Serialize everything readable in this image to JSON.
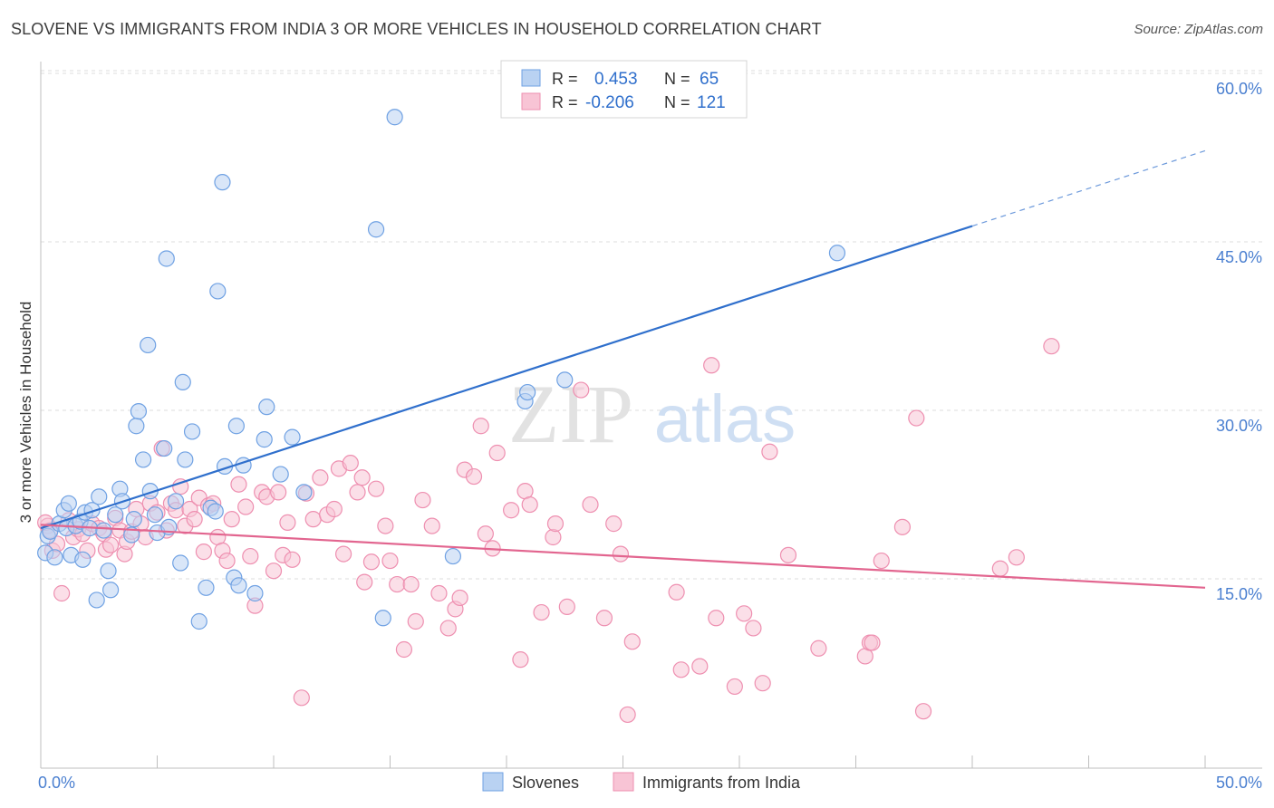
{
  "title": "SLOVENE VS IMMIGRANTS FROM INDIA 3 OR MORE VEHICLES IN HOUSEHOLD CORRELATION CHART",
  "source": "Source: ZipAtlas.com",
  "watermark": {
    "zip": "ZIP",
    "atlas": "atlas"
  },
  "legend_top": {
    "rows": [
      {
        "r_label": "R =",
        "r_value": "0.453",
        "n_label": "N =",
        "n_value": "65",
        "color": "#6fa1e3"
      },
      {
        "r_label": "R =",
        "r_value": "-0.206",
        "n_label": "N =",
        "n_value": "121",
        "color": "#f090b0"
      }
    ]
  },
  "legend_bottom": [
    {
      "label": "Slovenes",
      "color": "#6fa1e3"
    },
    {
      "label": "Immigrants from India",
      "color": "#f090b0"
    }
  ],
  "colors": {
    "blue_fill": "#b9d2f2",
    "blue_stroke": "#6fa1e3",
    "blue_line": "#2f6fcc",
    "pink_fill": "#f8c4d5",
    "pink_stroke": "#ee8fb0",
    "pink_line": "#e2658f",
    "tick_label": "#4a7fd0",
    "grid": "#dedede",
    "axis": "#bfbfbf"
  },
  "chart_data": {
    "type": "scatter",
    "ylabel": "3 or more Vehicles in Household",
    "xlim": [
      0,
      50
    ],
    "ylim": [
      0,
      60
    ],
    "x_tick_labels": [
      {
        "value": 0,
        "label": "0.0%"
      },
      {
        "value": 50,
        "label": "50.0%"
      }
    ],
    "y_tick_labels": [
      {
        "value": 15,
        "label": "15.0%"
      },
      {
        "value": 30,
        "label": "30.0%"
      },
      {
        "value": 45,
        "label": "45.0%"
      },
      {
        "value": 60,
        "label": "60.0%"
      }
    ],
    "grid": true,
    "series": [
      {
        "name": "Slovenes",
        "points": [
          [
            0.2,
            18.6
          ],
          [
            0.3,
            20.1
          ],
          [
            0.4,
            20.5
          ],
          [
            0.6,
            18.2
          ],
          [
            0.8,
            21.2
          ],
          [
            1.0,
            22.4
          ],
          [
            1.1,
            20.8
          ],
          [
            1.2,
            23.0
          ],
          [
            1.3,
            18.4
          ],
          [
            1.5,
            21.0
          ],
          [
            1.7,
            21.4
          ],
          [
            1.8,
            18.0
          ],
          [
            1.9,
            22.2
          ],
          [
            2.1,
            20.8
          ],
          [
            2.2,
            22.4
          ],
          [
            2.4,
            14.4
          ],
          [
            2.5,
            23.6
          ],
          [
            2.7,
            20.6
          ],
          [
            2.9,
            17.0
          ],
          [
            3.0,
            15.3
          ],
          [
            3.2,
            22.0
          ],
          [
            3.4,
            24.3
          ],
          [
            3.5,
            23.2
          ],
          [
            3.9,
            20.2
          ],
          [
            4.0,
            21.6
          ],
          [
            4.1,
            29.9
          ],
          [
            4.2,
            31.2
          ],
          [
            4.4,
            26.9
          ],
          [
            4.6,
            37.1
          ],
          [
            4.7,
            24.1
          ],
          [
            4.9,
            22.0
          ],
          [
            5.0,
            20.4
          ],
          [
            5.3,
            27.9
          ],
          [
            5.4,
            44.8
          ],
          [
            5.5,
            20.9
          ],
          [
            5.8,
            23.2
          ],
          [
            6.0,
            17.7
          ],
          [
            6.1,
            33.8
          ],
          [
            6.2,
            26.9
          ],
          [
            6.5,
            29.4
          ],
          [
            7.1,
            15.5
          ],
          [
            7.3,
            22.6
          ],
          [
            7.5,
            22.3
          ],
          [
            7.6,
            41.9
          ],
          [
            7.8,
            51.6
          ],
          [
            7.9,
            26.3
          ],
          [
            8.3,
            16.4
          ],
          [
            8.4,
            29.9
          ],
          [
            8.5,
            15.7
          ],
          [
            8.7,
            26.4
          ],
          [
            9.2,
            15.0
          ],
          [
            9.6,
            28.7
          ],
          [
            9.7,
            31.6
          ],
          [
            10.3,
            25.6
          ],
          [
            10.8,
            28.9
          ],
          [
            11.3,
            24.0
          ],
          [
            14.4,
            47.4
          ],
          [
            14.7,
            12.8
          ],
          [
            15.2,
            57.4
          ],
          [
            17.7,
            18.3
          ],
          [
            20.8,
            32.1
          ],
          [
            20.9,
            32.9
          ],
          [
            22.5,
            34.0
          ],
          [
            34.2,
            45.3
          ],
          [
            6.8,
            12.5
          ]
        ]
      },
      {
        "name": "Immigrants from India",
        "points": [
          [
            0.3,
            21.0
          ],
          [
            0.4,
            20.6
          ],
          [
            0.5,
            18.8
          ],
          [
            0.7,
            19.4
          ],
          [
            0.9,
            15.0
          ],
          [
            1.2,
            21.5
          ],
          [
            1.4,
            20.0
          ],
          [
            1.6,
            20.7
          ],
          [
            1.8,
            20.3
          ],
          [
            2.0,
            18.8
          ],
          [
            2.2,
            21.2
          ],
          [
            2.5,
            20.8
          ],
          [
            2.7,
            20.3
          ],
          [
            2.8,
            18.9
          ],
          [
            3.0,
            19.3
          ],
          [
            3.2,
            21.7
          ],
          [
            3.4,
            20.6
          ],
          [
            3.6,
            18.5
          ],
          [
            3.7,
            19.6
          ],
          [
            3.9,
            20.5
          ],
          [
            4.1,
            22.5
          ],
          [
            4.3,
            21.2
          ],
          [
            4.5,
            20.0
          ],
          [
            4.7,
            23.0
          ],
          [
            5.0,
            22.2
          ],
          [
            5.2,
            27.9
          ],
          [
            5.4,
            20.6
          ],
          [
            5.6,
            23.0
          ],
          [
            5.8,
            22.4
          ],
          [
            6.0,
            24.5
          ],
          [
            6.2,
            21.0
          ],
          [
            6.4,
            22.5
          ],
          [
            6.6,
            21.6
          ],
          [
            6.8,
            23.5
          ],
          [
            7.0,
            18.7
          ],
          [
            7.2,
            22.8
          ],
          [
            7.4,
            23.0
          ],
          [
            7.6,
            20.0
          ],
          [
            7.8,
            18.8
          ],
          [
            8.0,
            17.9
          ],
          [
            8.2,
            21.6
          ],
          [
            8.5,
            24.7
          ],
          [
            8.8,
            22.7
          ],
          [
            9.0,
            18.3
          ],
          [
            9.2,
            13.9
          ],
          [
            9.5,
            24.0
          ],
          [
            9.7,
            23.6
          ],
          [
            10.0,
            17.0
          ],
          [
            10.2,
            24.0
          ],
          [
            10.4,
            18.4
          ],
          [
            10.6,
            21.3
          ],
          [
            10.8,
            18.0
          ],
          [
            11.2,
            5.7
          ],
          [
            11.4,
            23.9
          ],
          [
            11.7,
            21.6
          ],
          [
            12.0,
            25.3
          ],
          [
            12.3,
            22.0
          ],
          [
            12.6,
            22.5
          ],
          [
            12.8,
            26.1
          ],
          [
            13.0,
            18.5
          ],
          [
            13.3,
            26.6
          ],
          [
            13.6,
            24.0
          ],
          [
            13.8,
            25.3
          ],
          [
            13.9,
            16.0
          ],
          [
            14.2,
            17.8
          ],
          [
            14.4,
            24.3
          ],
          [
            14.8,
            21.0
          ],
          [
            15.0,
            17.9
          ],
          [
            15.3,
            15.8
          ],
          [
            15.6,
            10.0
          ],
          [
            15.9,
            15.8
          ],
          [
            16.1,
            12.5
          ],
          [
            16.4,
            23.3
          ],
          [
            16.8,
            21.0
          ],
          [
            17.1,
            15.0
          ],
          [
            17.5,
            11.9
          ],
          [
            17.8,
            13.6
          ],
          [
            18.0,
            14.6
          ],
          [
            18.2,
            26.0
          ],
          [
            18.6,
            25.4
          ],
          [
            18.9,
            29.9
          ],
          [
            19.1,
            20.3
          ],
          [
            19.4,
            19.0
          ],
          [
            19.6,
            27.5
          ],
          [
            20.2,
            22.4
          ],
          [
            20.6,
            9.1
          ],
          [
            20.8,
            24.1
          ],
          [
            21.0,
            22.9
          ],
          [
            21.5,
            13.3
          ],
          [
            22.0,
            20.0
          ],
          [
            22.1,
            21.2
          ],
          [
            22.6,
            13.8
          ],
          [
            23.2,
            33.1
          ],
          [
            23.6,
            22.9
          ],
          [
            24.2,
            12.8
          ],
          [
            24.6,
            21.2
          ],
          [
            24.9,
            18.5
          ],
          [
            25.2,
            4.2
          ],
          [
            25.4,
            10.7
          ],
          [
            27.3,
            15.1
          ],
          [
            27.5,
            8.2
          ],
          [
            28.3,
            8.5
          ],
          [
            28.8,
            35.3
          ],
          [
            29.0,
            12.8
          ],
          [
            29.8,
            6.7
          ],
          [
            30.2,
            13.2
          ],
          [
            30.6,
            11.9
          ],
          [
            31.0,
            7.0
          ],
          [
            31.3,
            27.6
          ],
          [
            32.1,
            18.4
          ],
          [
            33.4,
            10.1
          ],
          [
            35.4,
            9.4
          ],
          [
            35.6,
            10.6
          ],
          [
            35.7,
            10.6
          ],
          [
            36.1,
            17.9
          ],
          [
            37.0,
            20.9
          ],
          [
            37.6,
            30.6
          ],
          [
            37.9,
            4.5
          ],
          [
            41.2,
            17.2
          ],
          [
            41.9,
            18.2
          ],
          [
            43.4,
            37.0
          ],
          [
            0.2,
            21.3
          ]
        ]
      }
    ],
    "trend_lines": [
      {
        "series": "Slovenes",
        "x": [
          0,
          40
        ],
        "y": [
          20.8,
          47.7
        ],
        "dashed_extension_to_x": 50,
        "dashed_extension_y": 54.4
      },
      {
        "series": "Immigrants from India",
        "x": [
          0,
          50
        ],
        "y": [
          21.1,
          15.5
        ]
      }
    ]
  }
}
